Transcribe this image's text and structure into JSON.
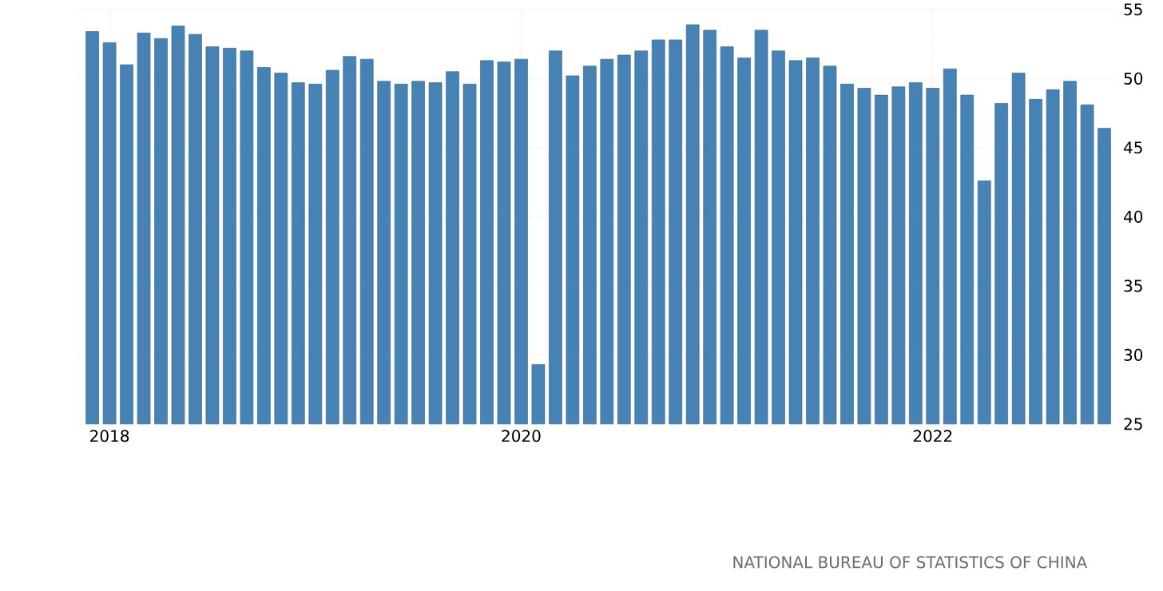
{
  "chart_data": {
    "type": "bar",
    "categories": [
      null,
      "2018",
      null,
      null,
      null,
      null,
      null,
      null,
      null,
      null,
      null,
      null,
      null,
      null,
      null,
      null,
      null,
      null,
      null,
      null,
      null,
      null,
      null,
      null,
      null,
      "2020",
      null,
      null,
      null,
      null,
      null,
      null,
      null,
      null,
      null,
      null,
      null,
      null,
      null,
      null,
      null,
      null,
      null,
      null,
      null,
      null,
      null,
      null,
      null,
      "2022",
      null,
      null,
      null,
      null,
      null,
      null,
      null,
      null,
      null,
      null
    ],
    "values": [
      53.4,
      52.6,
      51.0,
      53.3,
      52.9,
      53.8,
      53.2,
      52.3,
      52.2,
      52.0,
      50.8,
      50.4,
      49.7,
      49.6,
      50.6,
      51.6,
      51.4,
      49.8,
      49.6,
      49.8,
      49.7,
      50.5,
      49.6,
      51.3,
      51.2,
      51.4,
      29.3,
      52.0,
      50.2,
      50.9,
      51.4,
      51.7,
      52.0,
      52.8,
      52.8,
      53.9,
      53.5,
      52.3,
      51.5,
      53.5,
      52.0,
      51.3,
      51.5,
      50.9,
      49.6,
      49.3,
      48.8,
      49.4,
      49.7,
      49.3,
      50.7,
      48.8,
      42.6,
      48.2,
      50.4,
      48.5,
      49.2,
      49.8,
      48.1,
      46.4
    ],
    "color": "#4682b4",
    "ylim": [
      25,
      55
    ],
    "yticks": [
      25,
      30,
      35,
      40,
      45,
      50,
      55
    ],
    "grid": true,
    "annotations": [
      "NATIONAL BUREAU OF STATISTICS OF CHINA"
    ]
  }
}
